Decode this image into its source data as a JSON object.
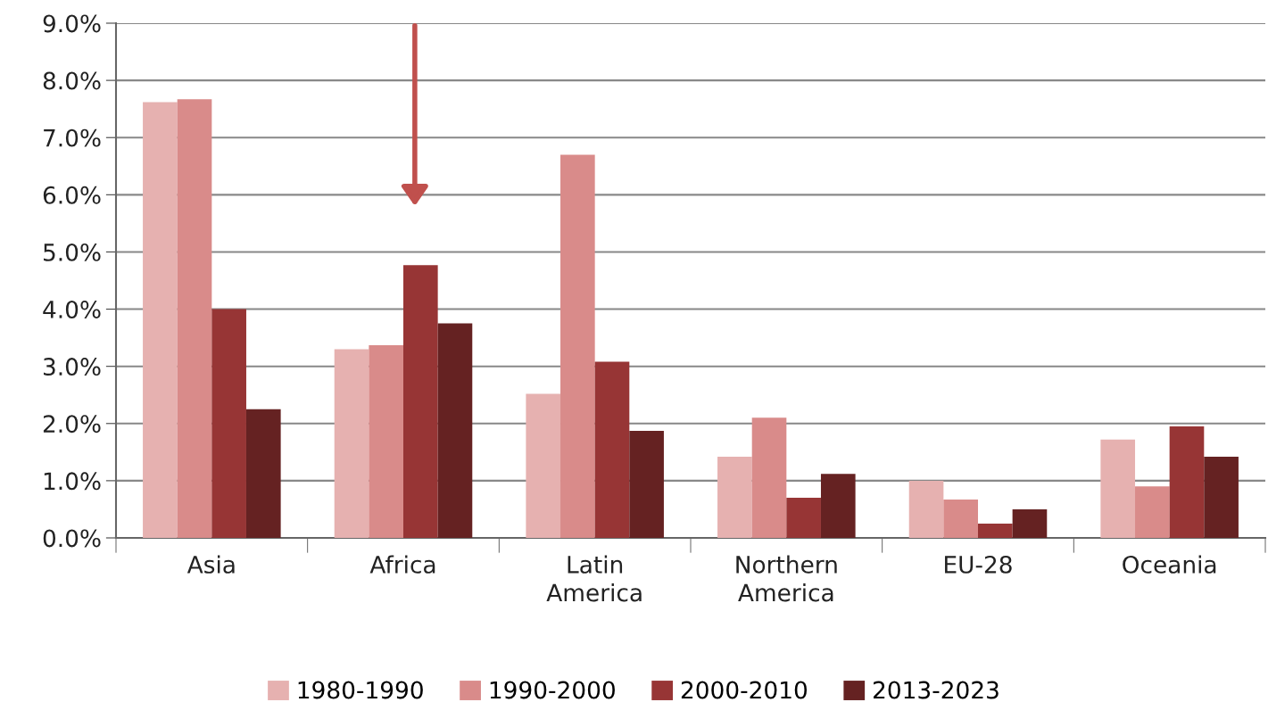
{
  "chart_data": {
    "type": "bar",
    "categories": [
      "Asia",
      "Africa",
      "Latin\nAmerica",
      "Northern\nAmerica",
      "EU-28",
      "Oceania"
    ],
    "series": [
      {
        "name": "1980-1990",
        "color": "#e6b1b0",
        "values": [
          7.62,
          3.3,
          2.52,
          1.42,
          1.0,
          1.72
        ]
      },
      {
        "name": "1990-2000",
        "color": "#d98b8a",
        "values": [
          7.67,
          3.37,
          6.7,
          2.1,
          0.67,
          0.9
        ]
      },
      {
        "name": "2000-2010",
        "color": "#973535",
        "values": [
          4.0,
          4.77,
          3.08,
          0.7,
          0.25,
          1.95
        ]
      },
      {
        "name": "2013-2023",
        "color": "#652222",
        "values": [
          2.25,
          3.75,
          1.87,
          1.12,
          0.5,
          1.42
        ]
      }
    ],
    "ylim": [
      0,
      9
    ],
    "yticks": [
      {
        "value": 0,
        "label": "0.0%"
      },
      {
        "value": 1,
        "label": "1.0%"
      },
      {
        "value": 2,
        "label": "2.0%"
      },
      {
        "value": 3,
        "label": "3.0%"
      },
      {
        "value": 4,
        "label": "4.0%"
      },
      {
        "value": 5,
        "label": "5.0%"
      },
      {
        "value": 6,
        "label": "6.0%"
      },
      {
        "value": 7,
        "label": "7.0%"
      },
      {
        "value": 8,
        "label": "8.0%"
      },
      {
        "value": 9,
        "label": "9.0%"
      }
    ],
    "grid": "y",
    "legend": "bottom"
  }
}
